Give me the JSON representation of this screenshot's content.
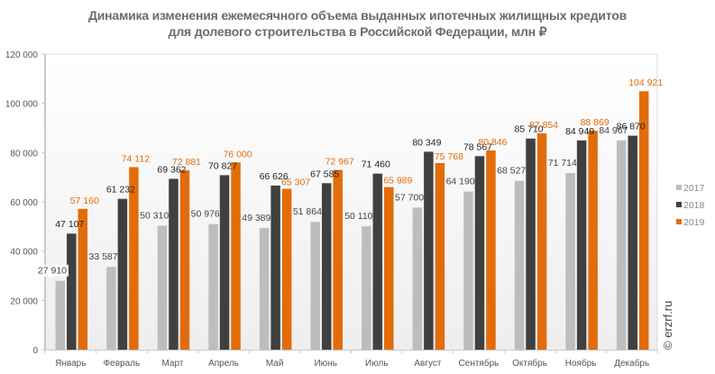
{
  "chart_data": {
    "type": "bar",
    "title_line1": "Динамика изменения ежемесячного объема выданных ипотечных жилищных кредитов",
    "title_line2": "для долевого строительства  в Российской  Федерации, млн ₽",
    "xlabel": "",
    "ylabel": "",
    "ylim": [
      0,
      120000
    ],
    "yticks": [
      0,
      20000,
      40000,
      60000,
      80000,
      100000,
      120000
    ],
    "ytick_labels": [
      "0",
      "20 000",
      "40 000",
      "60 000",
      "80 000",
      "100 000",
      "120 000"
    ],
    "grid": false,
    "legend_position": "right",
    "categories": [
      "Январь",
      "Февраль",
      "Март",
      "Апрель",
      "Май",
      "Июнь",
      "Июль",
      "Август",
      "Сентябрь",
      "Октябрь",
      "Ноябрь",
      "Декабрь"
    ],
    "series": [
      {
        "name": "2017",
        "color": "#bdbdbd",
        "label_color": "#444444",
        "values": [
          27910,
          33587,
          50310,
          50976,
          49389,
          51864,
          50110,
          57700,
          64190,
          68527,
          71714,
          84967
        ],
        "labels": [
          "27 910",
          "33 587",
          "50 310",
          "50 976",
          "49 389",
          "51 864",
          "50 110",
          "57 700",
          "64 190",
          "68 527",
          "71 714",
          "84 967"
        ]
      },
      {
        "name": "2018",
        "color": "#404040",
        "label_color": "#222222",
        "values": [
          47107,
          61232,
          69362,
          70827,
          66626,
          67585,
          71460,
          80349,
          78567,
          85710,
          84949,
          86870
        ],
        "labels": [
          "47 107",
          "61 232",
          "69 362",
          "70 827",
          "66 626",
          "67 585",
          "71 460",
          "80 349",
          "78 567",
          "85 710",
          "84 949",
          "86 870"
        ]
      },
      {
        "name": "2019",
        "color": "#e36c0a",
        "label_color": "#e36c0a",
        "values": [
          57160,
          74112,
          72881,
          76000,
          65307,
          72967,
          65989,
          75768,
          80846,
          87854,
          88869,
          104921
        ],
        "labels": [
          "57 160",
          "74 112",
          "72 881",
          "76 000",
          "65 307",
          "72 967",
          "65 989",
          "75 768",
          "80 846",
          "87 854",
          "88 869",
          "104 921"
        ]
      }
    ],
    "credit": "© erzrf.ru"
  }
}
